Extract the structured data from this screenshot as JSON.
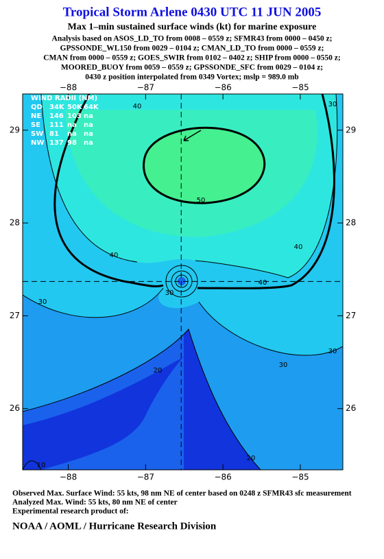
{
  "chart_data": {
    "type": "contour-map",
    "title": "Tropical Storm Arlene 0430 UTC 11 JUN 2005",
    "subtitle": "Max 1–min sustained surface winds (kt) for marine exposure",
    "analysis_lines": [
      "Analysis based on  ASOS_LD_TO from 0008 – 0559 z;  SFMR43 from 0000 – 0450 z;",
      "GPSSONDE_WL150 from 0029 – 0104 z;  CMAN_LD_TO from 0000 – 0559 z;",
      "CMAN from 0000 – 0559 z;  GOES_SWIR from 0102 – 0402 z;  SHIP from 0000 – 0550 z;",
      "MOORED_BUOY from 0059 – 0559 z;  GPSSONDE_SFC from 0029 – 0104 z;",
      "0430 z position interpolated from 0349 Vortex; mslp = 989.0 mb"
    ],
    "xlim": [
      -88.59,
      -84.45
    ],
    "ylim": [
      25.34,
      29.39
    ],
    "xticks": [
      {
        "value": -88,
        "label": "−88"
      },
      {
        "value": -87,
        "label": "−87"
      },
      {
        "value": -86,
        "label": "−86"
      },
      {
        "value": -85,
        "label": "−85"
      }
    ],
    "yticks": [
      29,
      28,
      27,
      26
    ],
    "center": {
      "lon": -86.54,
      "lat": 27.37
    },
    "wind_radii": {
      "title": "WIND RADII (NM)",
      "rows": [
        [
          "QD",
          "34K",
          "50K",
          "64K"
        ],
        [
          "NE",
          "146",
          "103",
          "na"
        ],
        [
          "SE",
          "111",
          "na",
          "na"
        ],
        [
          "SW",
          "81",
          "na",
          "na"
        ],
        [
          "NW",
          "137",
          "98",
          "na"
        ]
      ]
    },
    "contour_labels": [
      "40",
      "50",
      "40",
      "40",
      "40",
      "30",
      "30",
      "30",
      "30",
      "20",
      "20",
      "10",
      "30"
    ],
    "footer_lines": [
      "Observed Max. Surface Wind: 55 kts, 98 nm NE of center based on 0248 z SFMR43 sfc measurement",
      "Analyzed Max. Wind: 55 kts, 80 nm NE of center",
      "Experimental research product of:"
    ],
    "credit": "NOAA / AOML / Hurricane Research Division"
  }
}
